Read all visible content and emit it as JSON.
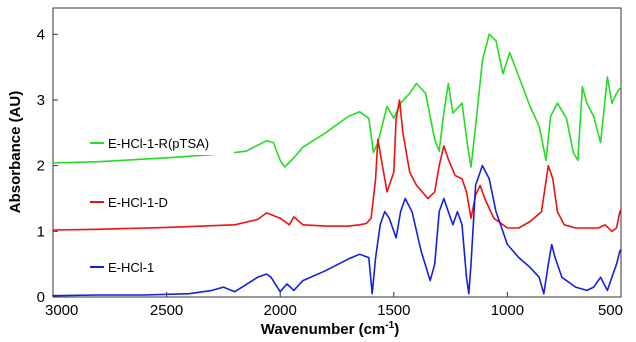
{
  "chart_data": {
    "type": "line",
    "xlabel": "Wavenumber (cm",
    "xlabel_sup": "-1",
    "xlabel_suffix": ")",
    "ylabel": "Absorbance (AU)",
    "xlim": [
      3000,
      500
    ],
    "ylim": [
      0,
      4.4
    ],
    "x_reversed": true,
    "x_ticks": [
      "3000",
      "2500",
      "2000",
      "1500",
      "1000",
      "500"
    ],
    "y_ticks": [
      "0",
      "1",
      "2",
      "3",
      "4"
    ],
    "grid": false,
    "series": [
      {
        "name": "E-HCl-1-R(pTSA)",
        "color": "#22dd22",
        "points": [
          [
            3000,
            2.04
          ],
          [
            2800,
            2.06
          ],
          [
            2500,
            2.12
          ],
          [
            2250,
            2.18
          ],
          [
            2150,
            2.22
          ],
          [
            2060,
            2.38
          ],
          [
            2030,
            2.35
          ],
          [
            2000,
            2.08
          ],
          [
            1980,
            1.98
          ],
          [
            1940,
            2.12
          ],
          [
            1900,
            2.28
          ],
          [
            1800,
            2.5
          ],
          [
            1700,
            2.75
          ],
          [
            1650,
            2.82
          ],
          [
            1610,
            2.72
          ],
          [
            1590,
            2.2
          ],
          [
            1570,
            2.35
          ],
          [
            1530,
            2.9
          ],
          [
            1500,
            2.72
          ],
          [
            1470,
            2.95
          ],
          [
            1430,
            3.1
          ],
          [
            1400,
            3.25
          ],
          [
            1360,
            3.1
          ],
          [
            1320,
            2.4
          ],
          [
            1300,
            2.22
          ],
          [
            1280,
            2.8
          ],
          [
            1260,
            3.25
          ],
          [
            1240,
            2.8
          ],
          [
            1200,
            2.95
          ],
          [
            1175,
            2.3
          ],
          [
            1160,
            1.98
          ],
          [
            1140,
            2.6
          ],
          [
            1110,
            3.6
          ],
          [
            1080,
            4.0
          ],
          [
            1050,
            3.9
          ],
          [
            1020,
            3.4
          ],
          [
            990,
            3.72
          ],
          [
            960,
            3.45
          ],
          [
            900,
            2.9
          ],
          [
            860,
            2.6
          ],
          [
            830,
            2.08
          ],
          [
            810,
            2.75
          ],
          [
            780,
            2.95
          ],
          [
            740,
            2.72
          ],
          [
            710,
            2.2
          ],
          [
            690,
            2.08
          ],
          [
            670,
            3.2
          ],
          [
            650,
            2.95
          ],
          [
            620,
            2.75
          ],
          [
            590,
            2.35
          ],
          [
            560,
            3.35
          ],
          [
            540,
            2.95
          ],
          [
            520,
            3.1
          ],
          [
            500,
            3.2
          ]
        ]
      },
      {
        "name": "E-HCl-1-D",
        "color": "#ee1111",
        "points": [
          [
            3000,
            1.02
          ],
          [
            2800,
            1.03
          ],
          [
            2500,
            1.06
          ],
          [
            2200,
            1.1
          ],
          [
            2100,
            1.18
          ],
          [
            2060,
            1.28
          ],
          [
            2000,
            1.2
          ],
          [
            1960,
            1.1
          ],
          [
            1940,
            1.22
          ],
          [
            1900,
            1.1
          ],
          [
            1800,
            1.08
          ],
          [
            1700,
            1.08
          ],
          [
            1650,
            1.1
          ],
          [
            1620,
            1.12
          ],
          [
            1600,
            1.2
          ],
          [
            1580,
            1.8
          ],
          [
            1570,
            2.4
          ],
          [
            1555,
            2.1
          ],
          [
            1530,
            1.6
          ],
          [
            1500,
            1.9
          ],
          [
            1490,
            2.7
          ],
          [
            1475,
            3.0
          ],
          [
            1460,
            2.5
          ],
          [
            1430,
            1.9
          ],
          [
            1400,
            1.7
          ],
          [
            1350,
            1.5
          ],
          [
            1320,
            1.6
          ],
          [
            1300,
            2.0
          ],
          [
            1280,
            2.3
          ],
          [
            1260,
            2.1
          ],
          [
            1230,
            1.85
          ],
          [
            1200,
            1.8
          ],
          [
            1180,
            1.6
          ],
          [
            1160,
            1.2
          ],
          [
            1140,
            1.55
          ],
          [
            1120,
            1.7
          ],
          [
            1100,
            1.5
          ],
          [
            1060,
            1.2
          ],
          [
            1000,
            1.05
          ],
          [
            950,
            1.05
          ],
          [
            900,
            1.15
          ],
          [
            850,
            1.3
          ],
          [
            820,
            2.0
          ],
          [
            800,
            1.8
          ],
          [
            780,
            1.3
          ],
          [
            750,
            1.1
          ],
          [
            700,
            1.05
          ],
          [
            650,
            1.05
          ],
          [
            600,
            1.05
          ],
          [
            570,
            1.1
          ],
          [
            540,
            1.0
          ],
          [
            520,
            1.05
          ],
          [
            505,
            1.3
          ],
          [
            500,
            1.33
          ]
        ]
      },
      {
        "name": "E-HCl-1",
        "color": "#1122dd",
        "points": [
          [
            3000,
            0.02
          ],
          [
            2800,
            0.03
          ],
          [
            2600,
            0.03
          ],
          [
            2400,
            0.05
          ],
          [
            2300,
            0.1
          ],
          [
            2250,
            0.15
          ],
          [
            2200,
            0.08
          ],
          [
            2100,
            0.3
          ],
          [
            2060,
            0.35
          ],
          [
            2040,
            0.3
          ],
          [
            2000,
            0.08
          ],
          [
            1970,
            0.2
          ],
          [
            1940,
            0.1
          ],
          [
            1900,
            0.25
          ],
          [
            1800,
            0.4
          ],
          [
            1700,
            0.58
          ],
          [
            1650,
            0.65
          ],
          [
            1610,
            0.6
          ],
          [
            1595,
            0.05
          ],
          [
            1580,
            0.6
          ],
          [
            1560,
            1.1
          ],
          [
            1540,
            1.3
          ],
          [
            1520,
            1.2
          ],
          [
            1490,
            0.9
          ],
          [
            1470,
            1.3
          ],
          [
            1450,
            1.5
          ],
          [
            1420,
            1.3
          ],
          [
            1380,
            0.7
          ],
          [
            1340,
            0.25
          ],
          [
            1320,
            0.5
          ],
          [
            1300,
            1.3
          ],
          [
            1280,
            1.5
          ],
          [
            1260,
            1.3
          ],
          [
            1240,
            1.1
          ],
          [
            1220,
            1.3
          ],
          [
            1200,
            1.1
          ],
          [
            1180,
            0.3
          ],
          [
            1170,
            0.05
          ],
          [
            1160,
            0.5
          ],
          [
            1140,
            1.7
          ],
          [
            1110,
            2.0
          ],
          [
            1080,
            1.8
          ],
          [
            1050,
            1.3
          ],
          [
            1000,
            0.8
          ],
          [
            950,
            0.6
          ],
          [
            900,
            0.45
          ],
          [
            860,
            0.3
          ],
          [
            840,
            0.05
          ],
          [
            820,
            0.5
          ],
          [
            805,
            0.8
          ],
          [
            790,
            0.6
          ],
          [
            760,
            0.3
          ],
          [
            700,
            0.15
          ],
          [
            650,
            0.1
          ],
          [
            620,
            0.15
          ],
          [
            590,
            0.3
          ],
          [
            560,
            0.1
          ],
          [
            540,
            0.3
          ],
          [
            520,
            0.5
          ],
          [
            505,
            0.7
          ],
          [
            500,
            0.72
          ]
        ]
      }
    ]
  }
}
